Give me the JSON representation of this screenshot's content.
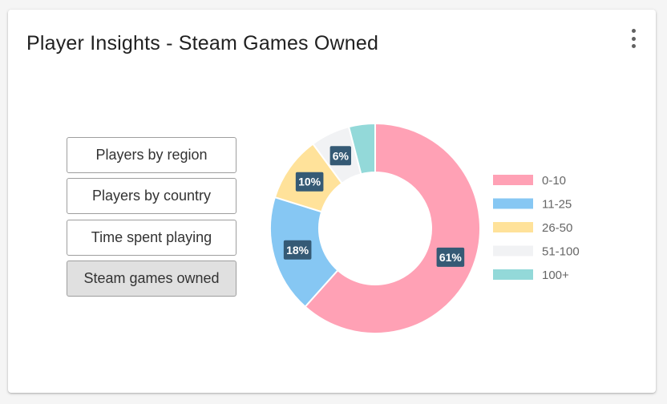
{
  "card": {
    "title": "Player Insights - Steam Games Owned",
    "menu_icon": "more-vert-icon"
  },
  "buttons": [
    {
      "label": "Players by region",
      "active": false
    },
    {
      "label": "Players by country",
      "active": false
    },
    {
      "label": "Time spent playing",
      "active": false
    },
    {
      "label": "Steam games owned",
      "active": true
    }
  ],
  "chart_data": {
    "type": "pie",
    "variant": "doughnut",
    "categories": [
      "0-10",
      "11-25",
      "26-50",
      "51-100",
      "100+"
    ],
    "values": [
      61,
      18,
      10,
      6,
      4
    ],
    "labels": [
      "61%",
      "18%",
      "10%",
      "6%",
      ""
    ],
    "colors": [
      "#ffa1b5",
      "#86c7f3",
      "#ffe29a",
      "#f1f2f4",
      "#93d9d9"
    ],
    "legend_position": "right"
  }
}
